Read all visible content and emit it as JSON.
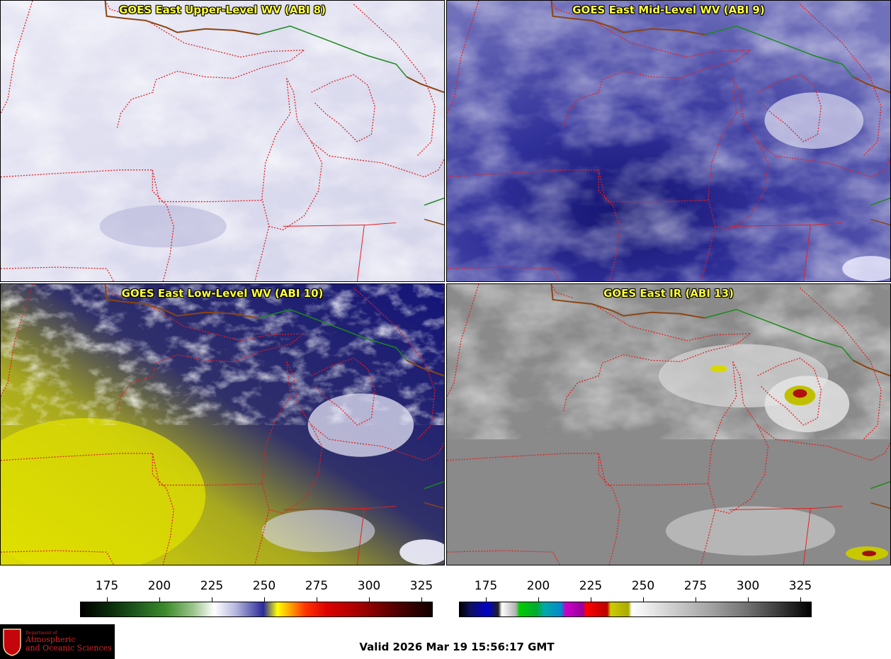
{
  "panels": [
    {
      "title": "GOES East Upper-Level WV (ABI 8)"
    },
    {
      "title": "GOES East Mid-Level WV (ABI 9)"
    },
    {
      "title": "GOES East Low-Level WV (ABI 10)"
    },
    {
      "title": "GOES East IR (ABI 13)"
    }
  ],
  "colorbar_wv": {
    "ticks": [
      "175",
      "200",
      "225",
      "250",
      "275",
      "300",
      "325"
    ]
  },
  "colorbar_ir": {
    "ticks": [
      "175",
      "200",
      "225",
      "250",
      "275",
      "300",
      "325"
    ]
  },
  "valid_time": "Valid 2026 Mar 19 15:56:17 GMT",
  "logo": {
    "dept": "Department of",
    "line1": "Atmospheric",
    "line2": "and Oceanic Sciences",
    "crest_letter": "W"
  },
  "colors": {
    "border_dotted": "#e02020",
    "border_solid": "#1a8a1a",
    "coast": "#8b4513",
    "title_text": "#ffff3a"
  }
}
